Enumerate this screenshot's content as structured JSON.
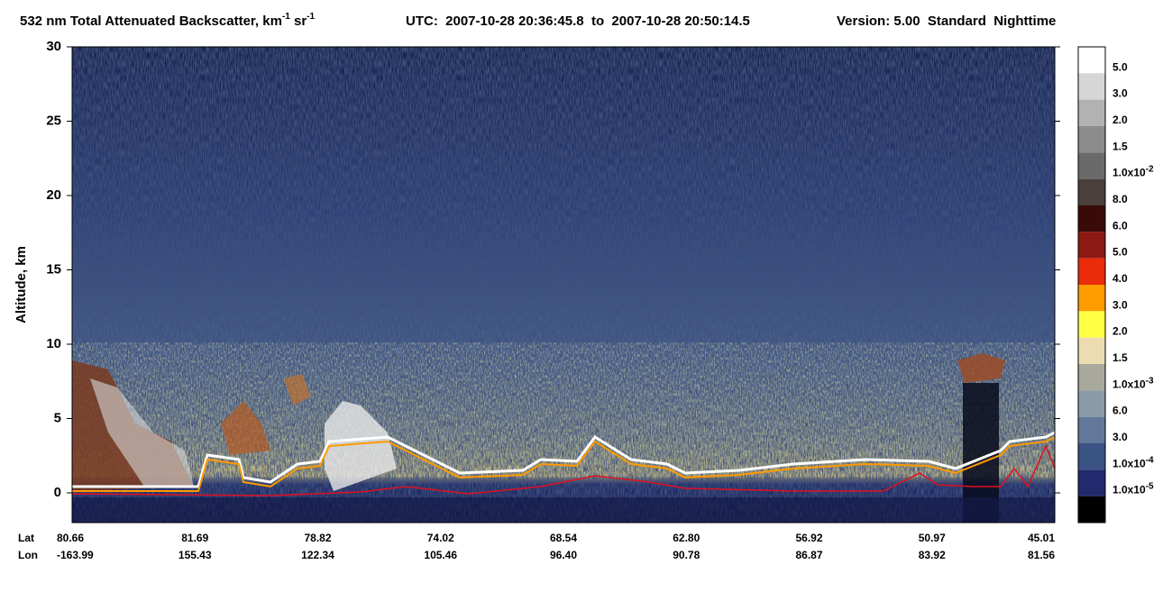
{
  "chart_data": {
    "type": "curtain",
    "title": {
      "text": "532 nm Total Attenuated Backscatter, km",
      "exp1": "-1",
      "unit2": " sr",
      "exp2": "-1"
    },
    "utc": "UTC:  2007-10-28 20:36:45.8  to  2007-10-28 20:50:14.5",
    "version": "Version: 5.00  Standard  Nighttime",
    "y_label": "Altitude, km",
    "ylim": [
      -2,
      30
    ],
    "yticks": [
      0,
      5,
      10,
      15,
      20,
      25,
      30
    ],
    "x_rows": [
      {
        "name": "Lat",
        "categories": [
          "80.66",
          "81.69",
          "78.82",
          "74.02",
          "68.54",
          "62.80",
          "56.92",
          "50.97",
          "45.01"
        ]
      },
      {
        "name": "Lon",
        "categories": [
          "-163.99",
          "155.43",
          "122.34",
          "105.46",
          "96.40",
          "90.78",
          "86.87",
          "83.92",
          "81.56"
        ]
      }
    ],
    "colorbar": {
      "colors": [
        "#ffffff",
        "#d6d6d6",
        "#b2b2b2",
        "#8c8c8c",
        "#6a6a6a",
        "#4b3f3b",
        "#3a0a08",
        "#8c1a12",
        "#ea2c0a",
        "#ff9c00",
        "#ffff44",
        "#ecdcb0",
        "#a8a89c",
        "#8a9aa6",
        "#62789a",
        "#3a5284",
        "#222a6e",
        "#000000"
      ],
      "labels": [
        {
          "text": "5.0"
        },
        {
          "text": "3.0"
        },
        {
          "text": "2.0"
        },
        {
          "text": "1.5"
        },
        {
          "text": "1.0x10",
          "sup": "-2"
        },
        {
          "text": "8.0"
        },
        {
          "text": "6.0"
        },
        {
          "text": "5.0"
        },
        {
          "text": "4.0"
        },
        {
          "text": "3.0"
        },
        {
          "text": "2.0"
        },
        {
          "text": "1.5"
        },
        {
          "text": "1.0x10",
          "sup": "-3"
        },
        {
          "text": "6.0"
        },
        {
          "text": "3.0"
        },
        {
          "text": "1.0x10",
          "sup": "-4"
        },
        {
          "text": "1.0x10",
          "sup": "-5"
        }
      ]
    }
  }
}
